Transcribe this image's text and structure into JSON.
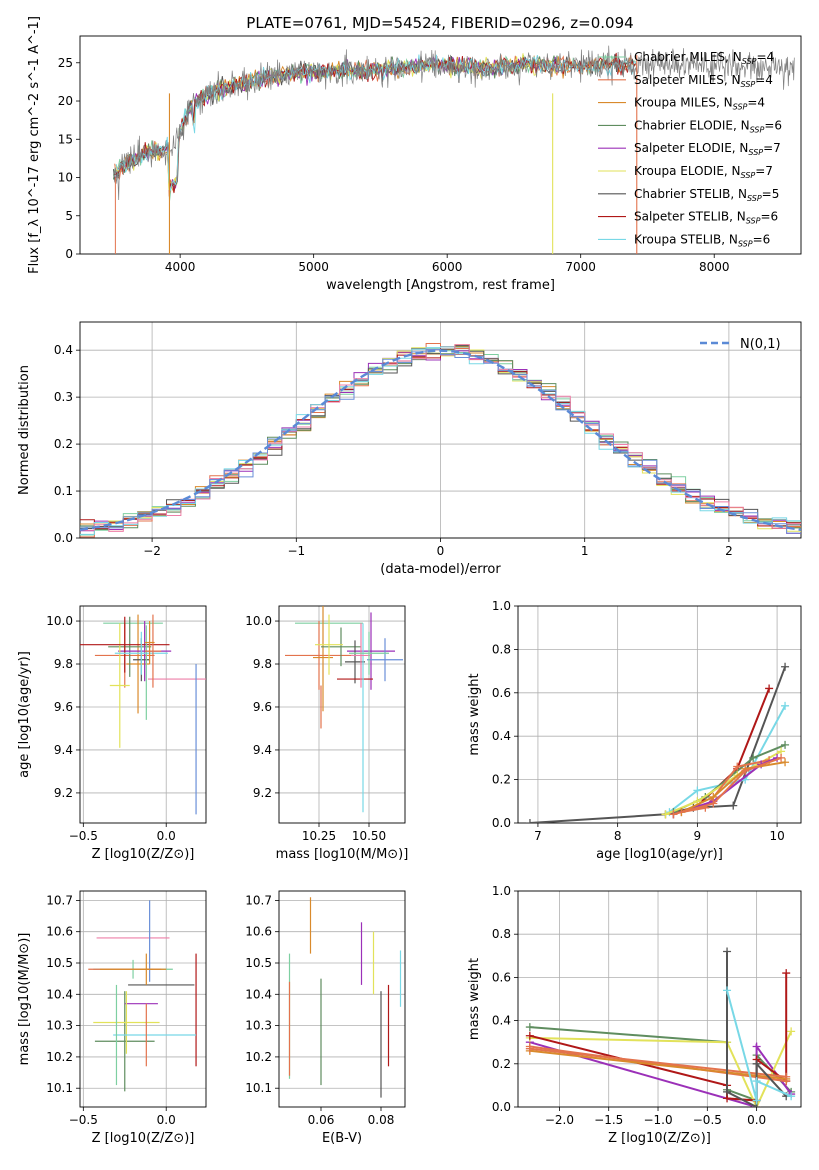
{
  "title": "PLATE=0761, MJD=54524, FIBERID=0296, z=0.094",
  "colors": {
    "Chabrier MILES": "#7ecfa1",
    "Salpeter MILES": "#e3734d",
    "Kroupa MILES": "#d98a2c",
    "Chabrier ELODIE": "#5f8d5f",
    "Salpeter ELODIE": "#9b30b8",
    "Kroupa ELODIE": "#e2e25a",
    "Chabrier STELIB": "#555555",
    "Salpeter STELIB": "#b01818",
    "Kroupa STELIB": "#78d8e6",
    "extra_pink": "#ee7fa8",
    "extra_blue": "#6a8fd8",
    "normal_curve": "#5b8ad6"
  },
  "chart_data": [
    {
      "id": "spectrum",
      "type": "line",
      "xlabel": "wavelength [Angstrom, rest frame]",
      "ylabel": "Flux [f_λ 10^-17 erg cm^-2 s^-1 A^-1]",
      "xlim": [
        3250,
        8650
      ],
      "ylim": [
        0,
        28.5
      ],
      "xticks": [
        4000,
        5000,
        6000,
        7000,
        8000
      ],
      "yticks": [
        0,
        5,
        10,
        15,
        20,
        25
      ],
      "legend_position": "right",
      "series": [
        {
          "name": "Chabrier MILES",
          "nssp": 4
        },
        {
          "name": "Salpeter MILES",
          "nssp": 4
        },
        {
          "name": "Kroupa MILES",
          "nssp": 4
        },
        {
          "name": "Chabrier ELODIE",
          "nssp": 6
        },
        {
          "name": "Salpeter ELODIE",
          "nssp": 7
        },
        {
          "name": "Kroupa ELODIE",
          "nssp": 7
        },
        {
          "name": "Chabrier STELIB",
          "nssp": 5
        },
        {
          "name": "Salpeter STELIB",
          "nssp": 6
        },
        {
          "name": "Kroupa STELIB",
          "nssp": 6
        }
      ],
      "continuum": {
        "x": [
          3500,
          3700,
          3950,
          4100,
          4300,
          4500,
          4800,
          5100,
          5500,
          5900,
          6300,
          6600,
          7000,
          7300,
          7600
        ],
        "y": [
          10.5,
          13,
          14,
          20,
          21.5,
          22.5,
          23.5,
          24,
          24,
          24.8,
          24.3,
          24.8,
          24.5,
          24.8,
          25
        ]
      },
      "spikes_x": [
        3920,
        6790,
        7420
      ]
    },
    {
      "id": "residuals",
      "type": "line",
      "xlabel": "(data-model)/error",
      "ylabel": "Normed distribution",
      "xlim": [
        -2.5,
        2.5
      ],
      "ylim": [
        0,
        0.46
      ],
      "xticks": [
        -2,
        -1,
        0,
        1,
        2
      ],
      "yticks": [
        0.0,
        0.1,
        0.2,
        0.3,
        0.4
      ],
      "legend_position": "top-right",
      "legend": "N(0,1)",
      "bin_width": 0.1
    },
    {
      "id": "age-vs-Z",
      "type": "scatter",
      "xlabel": "Z [log10(Z/Z⊙)]",
      "ylabel": "age [log10(age/yr)]",
      "xlim": [
        -0.52,
        0.24
      ],
      "ylim": [
        9.06,
        10.07
      ],
      "xticks": [
        -0.5,
        0.0
      ],
      "yticks": [
        9.2,
        9.4,
        9.6,
        9.8,
        10.0
      ],
      "errorbars": [
        {
          "x": -0.2,
          "y": 9.99,
          "xerr": 0.18,
          "yerr": 0
        },
        {
          "x": -0.25,
          "y": 9.84,
          "xerr": 0.18,
          "yerr": 0.15
        },
        {
          "x": -0.17,
          "y": 9.8,
          "xerr": 0.07,
          "yerr": 0.23
        },
        {
          "x": -0.22,
          "y": 9.88,
          "xerr": 0.13,
          "yerr": 0.14
        },
        {
          "x": -0.13,
          "y": 9.86,
          "xerr": 0.16,
          "yerr": 0.14
        },
        {
          "x": -0.28,
          "y": 9.7,
          "xerr": 0.06,
          "yerr": 0.29
        },
        {
          "x": -0.15,
          "y": 9.82,
          "xerr": 0.05,
          "yerr": 0.1
        },
        {
          "x": -0.25,
          "y": 9.89,
          "xerr": 0.27,
          "yerr": 0.13
        },
        {
          "x": -0.15,
          "y": 9.85,
          "xerr": 0.16,
          "yerr": 0.1
        },
        {
          "x": 0.09,
          "y": 9.73,
          "xerr": 0.2,
          "yerr": 0.0
        },
        {
          "x": 0.18,
          "y": 9.45,
          "xerr": 0,
          "yerr": 0.35
        },
        {
          "x": -0.12,
          "y": 9.76,
          "xerr": 0,
          "yerr": 0.22
        },
        {
          "x": -0.08,
          "y": 9.86,
          "xerr": 0.05,
          "yerr": 0.17
        },
        {
          "x": -0.1,
          "y": 9.9,
          "xerr": 0.03,
          "yerr": 0.1
        }
      ]
    },
    {
      "id": "age-vs-mass",
      "type": "scatter",
      "xlabel": "mass [log10(M/M⊙)]",
      "ylabel": "",
      "xlim": [
        10.05,
        10.68
      ],
      "ylim": [
        9.06,
        10.07
      ],
      "xticks": [
        10.25,
        10.5
      ],
      "yticks": [
        9.2,
        9.4,
        9.6,
        9.8,
        10.0
      ],
      "errorbars": [
        {
          "x": 10.3,
          "y": 9.99,
          "xerr": 0.17,
          "yerr": 0
        },
        {
          "x": 10.25,
          "y": 9.84,
          "xerr": 0.17,
          "yerr": 0.16
        },
        {
          "x": 10.27,
          "y": 9.83,
          "xerr": 0.05,
          "yerr": 0.25
        },
        {
          "x": 10.36,
          "y": 9.88,
          "xerr": 0.1,
          "yerr": 0.09
        },
        {
          "x": 10.51,
          "y": 9.86,
          "xerr": 0.12,
          "yerr": 0.18
        },
        {
          "x": 10.3,
          "y": 9.89,
          "xerr": 0.07,
          "yerr": 0.14
        },
        {
          "x": 10.43,
          "y": 9.81,
          "xerr": 0.05,
          "yerr": 0.1
        },
        {
          "x": 10.43,
          "y": 9.73,
          "xerr": 0.09,
          "yerr": 0
        },
        {
          "x": 10.47,
          "y": 9.55,
          "xerr": 0,
          "yerr": 0.44
        },
        {
          "x": 10.46,
          "y": 9.84,
          "xerr": 0.05,
          "yerr": 0.15
        },
        {
          "x": 10.58,
          "y": 9.82,
          "xerr": 0.09,
          "yerr": 0.1
        },
        {
          "x": 10.5,
          "y": 9.85,
          "xerr": 0.1,
          "yerr": 0.1
        },
        {
          "x": 10.26,
          "y": 9.6,
          "xerr": 0,
          "yerr": 0.1
        }
      ]
    },
    {
      "id": "weight-vs-age",
      "type": "line",
      "xlabel": "age [log10(age/yr)]",
      "ylabel": "mass weight",
      "xlim": [
        6.75,
        10.3
      ],
      "ylim": [
        0,
        1.0
      ],
      "xticks": [
        7,
        8,
        9,
        10
      ],
      "yticks": [
        0.0,
        0.2,
        0.4,
        0.6,
        0.8,
        1.0
      ],
      "series": [
        {
          "x": [
            6.9,
            8.6,
            8.95,
            9.45,
            10.1
          ],
          "y": [
            0.0,
            0.04,
            0.07,
            0.08,
            0.72
          ]
        },
        {
          "x": [
            8.7,
            9.0,
            9.5,
            9.9
          ],
          "y": [
            0.04,
            0.08,
            0.25,
            0.62
          ]
        },
        {
          "x": [
            8.65,
            9.0,
            9.6,
            10.1
          ],
          "y": [
            0.05,
            0.15,
            0.2,
            0.54
          ]
        },
        {
          "x": [
            8.7,
            9.1,
            9.7,
            10.1
          ],
          "y": [
            0.05,
            0.12,
            0.3,
            0.36
          ]
        },
        {
          "x": [
            8.6,
            9.0,
            9.5,
            10.05
          ],
          "y": [
            0.04,
            0.1,
            0.22,
            0.33
          ]
        },
        {
          "x": [
            8.8,
            9.1,
            9.5,
            9.9
          ],
          "y": [
            0.05,
            0.07,
            0.26,
            0.29
          ]
        },
        {
          "x": [
            8.7,
            9.2,
            9.8,
            10.0
          ],
          "y": [
            0.04,
            0.1,
            0.27,
            0.3
          ]
        },
        {
          "x": [
            8.8,
            9.2,
            9.6,
            10.1
          ],
          "y": [
            0.05,
            0.12,
            0.25,
            0.28
          ]
        },
        {
          "x": [
            8.7,
            9.2,
            9.6,
            10.05
          ],
          "y": [
            0.04,
            0.09,
            0.24,
            0.3
          ]
        }
      ]
    },
    {
      "id": "mass-vs-Z",
      "type": "scatter",
      "xlabel": "Z [log10(Z/Z⊙)]",
      "ylabel": "mass [log10(M/M⊙)]",
      "xlim": [
        -0.52,
        0.24
      ],
      "ylim": [
        10.04,
        10.73
      ],
      "xticks": [
        -0.5,
        0.0
      ],
      "yticks": [
        10.1,
        10.2,
        10.3,
        10.4,
        10.5,
        10.6,
        10.7
      ],
      "errorbars": [
        {
          "x": -0.2,
          "y": 10.48,
          "xerr": 0.24,
          "yerr": 0.03
        },
        {
          "x": -0.25,
          "y": 10.48,
          "xerr": 0.22,
          "yerr": 0.0
        },
        {
          "x": -0.2,
          "y": 10.48,
          "xerr": 0.2,
          "yerr": 0.0
        },
        {
          "x": -0.25,
          "y": 10.25,
          "xerr": 0.18,
          "yerr": 0.16
        },
        {
          "x": -0.15,
          "y": 10.37,
          "xerr": 0.1,
          "yerr": 0.0
        },
        {
          "x": -0.24,
          "y": 10.31,
          "xerr": 0.2,
          "yerr": 0.1
        },
        {
          "x": -0.03,
          "y": 10.43,
          "xerr": 0.2,
          "yerr": 0.0
        },
        {
          "x": 0.18,
          "y": 10.35,
          "xerr": 0,
          "yerr": 0.18
        },
        {
          "x": -0.07,
          "y": 10.27,
          "xerr": 0.25,
          "yerr": 0.0
        },
        {
          "x": -0.2,
          "y": 10.58,
          "xerr": 0.22,
          "yerr": 0.0
        },
        {
          "x": -0.1,
          "y": 10.57,
          "xerr": 0,
          "yerr": 0.13
        },
        {
          "x": -0.3,
          "y": 10.27,
          "xerr": 0,
          "yerr": 0.16
        },
        {
          "x": -0.12,
          "y": 10.27,
          "xerr": 0,
          "yerr": 0.1
        },
        {
          "x": -0.12,
          "y": 10.48,
          "xerr": 0.04,
          "yerr": 0.05
        }
      ]
    },
    {
      "id": "mass-vs-ebv",
      "type": "scatter",
      "xlabel": "E(B-V)",
      "ylabel": "",
      "xlim": [
        0.046,
        0.088
      ],
      "ylim": [
        10.04,
        10.73
      ],
      "xticks": [
        0.06,
        0.08
      ],
      "yticks": [
        10.1,
        10.2,
        10.3,
        10.4,
        10.5,
        10.6,
        10.7
      ],
      "errorbars": [
        {
          "x": 0.0495,
          "y": 10.33,
          "xerr": 0,
          "yerr": 0.2
        },
        {
          "x": 0.0495,
          "y": 10.29,
          "xerr": 0,
          "yerr": 0.15
        },
        {
          "x": 0.0565,
          "y": 10.62,
          "xerr": 0,
          "yerr": 0.09
        },
        {
          "x": 0.06,
          "y": 10.28,
          "xerr": 0,
          "yerr": 0.17
        },
        {
          "x": 0.0735,
          "y": 10.53,
          "xerr": 0,
          "yerr": 0.1
        },
        {
          "x": 0.0775,
          "y": 10.5,
          "xerr": 0,
          "yerr": 0.1
        },
        {
          "x": 0.08,
          "y": 10.24,
          "xerr": 0,
          "yerr": 0.17
        },
        {
          "x": 0.0825,
          "y": 10.3,
          "xerr": 0,
          "yerr": 0.13
        },
        {
          "x": 0.0865,
          "y": 10.45,
          "xerr": 0,
          "yerr": 0.09
        }
      ]
    },
    {
      "id": "weight-vs-Z",
      "type": "line",
      "xlabel": "Z [log10(Z/Z⊙)]",
      "ylabel": "mass weight",
      "xlim": [
        -2.42,
        0.45
      ],
      "ylim": [
        0,
        1.0
      ],
      "xticks": [
        -2.0,
        -1.5,
        -1.0,
        -0.5,
        0.0
      ],
      "yticks": [
        0.0,
        0.2,
        0.4,
        0.6,
        0.8,
        1.0
      ],
      "series": [
        {
          "x": [
            -2.3,
            -0.3,
            -0.3,
            0.0,
            0.0,
            0.35
          ],
          "y": [
            0.37,
            0.3,
            0.08,
            0.03,
            0.24,
            0.07
          ]
        },
        {
          "x": [
            -2.3,
            0.0,
            0.0,
            0.35
          ],
          "y": [
            0.3,
            0.0,
            0.28,
            0.06
          ]
        },
        {
          "x": [
            -2.3,
            -0.3,
            0.0,
            0.35
          ],
          "y": [
            0.32,
            0.3,
            0.0,
            0.35
          ]
        },
        {
          "x": [
            -2.3,
            -0.3,
            -0.3,
            0.0,
            0.0,
            0.3,
            0.3
          ],
          "y": [
            0.33,
            0.1,
            0.04,
            0.03,
            0.22,
            0.12,
            0.62
          ]
        },
        {
          "x": [
            -2.3,
            0.3
          ],
          "y": [
            0.28,
            0.12
          ]
        },
        {
          "x": [
            -2.3,
            0.3
          ],
          "y": [
            0.26,
            0.13
          ]
        },
        {
          "x": [
            -2.3,
            0.3
          ],
          "y": [
            0.27,
            0.14
          ]
        },
        {
          "x": [
            -0.3,
            -0.3,
            0.0,
            0.0,
            0.3
          ],
          "y": [
            0.72,
            0.07,
            0.0,
            0.2,
            0.05
          ]
        },
        {
          "x": [
            -0.3,
            0.0,
            0.0,
            0.35
          ],
          "y": [
            0.54,
            0.03,
            0.12,
            0.05
          ]
        }
      ]
    }
  ]
}
